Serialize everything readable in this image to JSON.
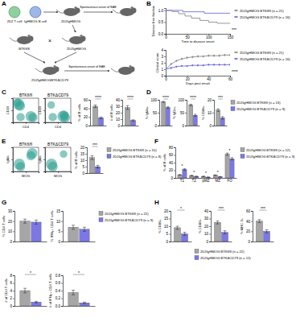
{
  "panel_labels": [
    "A",
    "B",
    "C",
    "D",
    "E",
    "F",
    "G",
    "H"
  ],
  "diagram": {
    "labels": [
      "2D2 T cell",
      "IgHMOG B cell",
      "2D2IgHMOG",
      "Spontaneous onset of EAE",
      "BTKfl/fl",
      "2D2IgHMOG",
      "2D2IgHMOGBTKΔCD79",
      "Spontaneous onset of EAE",
      "×"
    ]
  },
  "chart_data": [
    {
      "type": "line",
      "line_style": "step",
      "y_label": "Disease free fraction",
      "x_label": "Time to disease onset",
      "xlim": [
        0,
        150
      ],
      "xticks": [
        0,
        50,
        100,
        150
      ],
      "ylim": [
        0,
        1.1
      ],
      "yticks": [
        {
          "value": 0,
          "label": "0.0"
        },
        {
          "value": 0.5,
          "label": "0.5"
        },
        {
          "value": 1,
          "label": "1.0"
        }
      ],
      "legend": "right",
      "annotations": [
        "***"
      ],
      "series": [
        {
          "name": "2D2IgHMOG BTKfl/fl (n = 21)",
          "color": "#8c8c8c",
          "x": [
            0,
            15,
            30,
            45,
            60,
            80,
            100,
            120,
            150
          ],
          "values": [
            1,
            0.95,
            0.86,
            0.76,
            0.67,
            0.57,
            0.5,
            0.45,
            0.45
          ]
        },
        {
          "name": "2D2IgHMOG BTKΔCD79 (n = 16)",
          "color": "#6f6de0",
          "x": [
            0,
            40,
            90,
            150
          ],
          "values": [
            1,
            0.94,
            0.88,
            0.88
          ]
        }
      ]
    },
    {
      "type": "line",
      "marker": "circle",
      "y_label": "Clinical score",
      "x_label": "Days post onset",
      "xlim": [
        0,
        60
      ],
      "xticks": [
        0,
        20,
        40,
        60
      ],
      "ylim": [
        0,
        4
      ],
      "yticks": [
        0,
        1,
        2,
        3,
        4
      ],
      "legend": "right",
      "annotations": [
        "****"
      ],
      "series": [
        {
          "name": "2D2IgHMOG BTKfl/fl (n = 21)",
          "color": "#8c8c8c",
          "x": [
            0,
            5,
            10,
            15,
            20,
            25,
            30,
            35,
            40,
            45,
            50,
            55,
            60
          ],
          "values": [
            1,
            1.8,
            2.3,
            2.6,
            2.8,
            2.9,
            3,
            3,
            3.1,
            3.1,
            3.1,
            3.2,
            3.2
          ],
          "error": [
            0.1,
            0.2,
            0.2,
            0.2,
            0.2,
            0.2,
            0.2,
            0.2,
            0.2,
            0.2,
            0.2,
            0.2,
            0.2
          ]
        },
        {
          "name": "2D2IgHMOG BTKΔCD79 (n = 16)",
          "color": "#6f6de0",
          "x": [
            0,
            5,
            10,
            15,
            20,
            25,
            30,
            35,
            40,
            45,
            50,
            55,
            60
          ],
          "values": [
            1,
            1.2,
            1.4,
            1.5,
            1.5,
            1.6,
            1.6,
            1.6,
            1.7,
            1.7,
            1.7,
            1.7,
            1.7
          ],
          "error": [
            0.1,
            0.15,
            0.15,
            0.15,
            0.15,
            0.15,
            0.15,
            0.15,
            0.15,
            0.15,
            0.15,
            0.15,
            0.15
          ]
        }
      ]
    },
    {
      "type": "scatter",
      "title": "BTKfl/fl",
      "x_label": "CD4",
      "y_label": "CD19",
      "xlim": [
        0,
        100
      ],
      "xticks": [
        0,
        50,
        100
      ],
      "ylim": [
        0,
        100
      ],
      "yticks": [
        0,
        50,
        100
      ],
      "tick_labels": false,
      "color": "#2a9d8f",
      "x": [
        22,
        28,
        18,
        70,
        78,
        30
      ],
      "values": [
        75,
        68,
        82,
        25,
        20,
        22
      ],
      "size": [
        9,
        7,
        5,
        8,
        6,
        5
      ]
    },
    {
      "type": "scatter",
      "title": "BTKΔCD79",
      "x_label": "CD4",
      "y_label": "CD19",
      "xlim": [
        0,
        100
      ],
      "xticks": [
        0,
        50,
        100
      ],
      "ylim": [
        0,
        100
      ],
      "yticks": [
        0,
        50,
        100
      ],
      "tick_labels": false,
      "color": "#2a9d8f",
      "x": [
        24,
        70,
        78,
        74,
        30
      ],
      "values": [
        72,
        25,
        20,
        30,
        22
      ],
      "size": [
        4,
        9,
        7,
        6,
        5
      ]
    },
    {
      "type": "bar",
      "y_label": "% of B cells",
      "categories": [
        null
      ],
      "ylim": [
        0,
        60
      ],
      "yticks": [
        0,
        20,
        40,
        60
      ],
      "annotations": [
        "****"
      ],
      "series": [
        {
          "color": "#a6a6a6",
          "values": [
            45
          ],
          "error": [
            3
          ]
        },
        {
          "color": "#7b78e6",
          "values": [
            18
          ],
          "error": [
            2
          ]
        }
      ]
    },
    {
      "type": "bar",
      "y_label": "# of B cells",
      "categories": [
        null
      ],
      "ylim": [
        0,
        40
      ],
      "yticks": [
        0,
        10,
        20,
        30,
        40
      ],
      "annotations": [
        "****"
      ],
      "series": [
        {
          "color": "#a6a6a6",
          "values": [
            28
          ],
          "error": [
            3
          ]
        },
        {
          "color": "#7b78e6",
          "values": [
            8
          ],
          "error": [
            1
          ]
        }
      ]
    },
    {
      "type": "bar",
      "y_label": "% IgMa+",
      "categories": [
        null
      ],
      "ylim": [
        0,
        100
      ],
      "yticks": [
        0,
        50,
        100
      ],
      "annotations": [
        "****"
      ],
      "series": [
        {
          "color": "#a6a6a6",
          "values": [
            92
          ],
          "error": [
            2
          ]
        },
        {
          "color": "#7b78e6",
          "values": [
            70
          ],
          "error": [
            3
          ]
        }
      ]
    },
    {
      "type": "bar",
      "y_label": "% IgDa+",
      "categories": [
        null
      ],
      "ylim": [
        0,
        100
      ],
      "yticks": [
        0,
        50,
        100
      ],
      "annotations": [
        "****"
      ],
      "series": [
        {
          "color": "#a6a6a6",
          "values": [
            80
          ],
          "error": [
            3
          ]
        },
        {
          "color": "#7b78e6",
          "values": [
            40
          ],
          "error": [
            4
          ]
        }
      ]
    },
    {
      "type": "bar",
      "y_label": "% CD86+",
      "categories": [
        null
      ],
      "ylim": [
        0,
        20
      ],
      "yticks": [
        0,
        10,
        20
      ],
      "legend": "right",
      "annotations": [
        "***"
      ],
      "series": [
        {
          "name": "2D2IgHMOG BTKfl/fl (n = 13)",
          "color": "#a6a6a6",
          "values": [
            12
          ],
          "error": [
            1
          ]
        },
        {
          "name": "2D2IgHMOG BTKΔCD79 (n = 9)",
          "color": "#7b78e6",
          "values": [
            6
          ],
          "error": [
            1
          ]
        }
      ]
    },
    {
      "type": "scatter",
      "title": "BTKfl/fl",
      "x_label": "MOG",
      "y_label": "IgMa",
      "xlim": [
        0,
        100
      ],
      "xticks": [
        0,
        50,
        100
      ],
      "ylim": [
        0,
        100
      ],
      "yticks": [
        0,
        50,
        100
      ],
      "tick_labels": false,
      "color": "#2a9d8f",
      "x": [
        75,
        25,
        70,
        30
      ],
      "values": [
        75,
        30,
        65,
        20
      ],
      "size": [
        8,
        9,
        6,
        6
      ]
    },
    {
      "type": "scatter",
      "title": "BTKΔCD79",
      "x_label": "MOG",
      "y_label": "IgMa",
      "xlim": [
        0,
        100
      ],
      "xticks": [
        0,
        50,
        100
      ],
      "ylim": [
        0,
        100
      ],
      "yticks": [
        0,
        50,
        100
      ],
      "tick_labels": false,
      "color": "#2a9d8f",
      "x": [
        72,
        25,
        30
      ],
      "values": [
        72,
        30,
        20
      ],
      "size": [
        4,
        9,
        7
      ]
    },
    {
      "type": "bar",
      "y_label": "% of B cells",
      "categories": [
        null
      ],
      "ylim": [
        0,
        20
      ],
      "yticks": [
        0,
        5,
        10,
        15,
        20
      ],
      "legend": "right",
      "annotations": [
        "***"
      ],
      "series": [
        {
          "name": "2D2IgHMOG BTKfl/fl (n = 10)",
          "color": "#a6a6a6",
          "values": [
            12
          ],
          "error": [
            1.5
          ]
        },
        {
          "name": "2D2IgHMOG BTKΔCD79 (n = 8)",
          "color": "#7b78e6",
          "values": [
            5
          ],
          "error": [
            1
          ]
        }
      ]
    },
    {
      "type": "bar",
      "y_label": "% of B cells",
      "categories": [
        "T1",
        "T2",
        "pMZ",
        "MZ",
        "FO"
      ],
      "ylim": [
        0,
        80
      ],
      "yticks": [
        0,
        20,
        40,
        60,
        80
      ],
      "legend": "right",
      "annotations": [
        "*",
        "*",
        "*",
        "*",
        "*"
      ],
      "series": [
        {
          "name": "2D2IgHMOG BTKfl/fl (n = 12)",
          "color": "#a6a6a6",
          "values": [
            8,
            6,
            4,
            7,
            62
          ],
          "error": [
            1,
            1,
            0.5,
            1,
            3
          ]
        },
        {
          "name": "2D2IgHMOG BTKΔCD79 (n = 9)",
          "color": "#7b78e6",
          "values": [
            22,
            4,
            2,
            3,
            50
          ],
          "error": [
            2,
            0.5,
            0.3,
            0.5,
            3
          ]
        }
      ]
    },
    {
      "type": "bar",
      "y_label": "% CD4 T cells",
      "categories": [
        null
      ],
      "ylim": [
        0,
        30
      ],
      "yticks": [
        0,
        10,
        20,
        30
      ],
      "series": [
        {
          "color": "#a6a6a6",
          "values": [
            20
          ],
          "error": [
            2
          ]
        },
        {
          "color": "#7b78e6",
          "values": [
            19
          ],
          "error": [
            2
          ]
        }
      ]
    },
    {
      "type": "bar",
      "y_label": "% IFNγ+ CD4 T cells",
      "categories": [
        null
      ],
      "ylim": [
        0,
        15
      ],
      "yticks": [
        0,
        5,
        10,
        15
      ],
      "legend": "right",
      "series": [
        {
          "name": "2D2IgHMOG BTKfl/fl (n = 22)",
          "color": "#a6a6a6",
          "values": [
            7
          ],
          "error": [
            1
          ]
        },
        {
          "name": "2D2IgHMOG BTKΔCD79 (n = 9)",
          "color": "#7b78e6",
          "values": [
            6
          ],
          "error": [
            1
          ]
        }
      ]
    },
    {
      "type": "bar",
      "y_label": "# of CD4 T cells",
      "categories": [
        null
      ],
      "ylim": [
        0,
        8
      ],
      "yticks": [
        0,
        2,
        4,
        6,
        8
      ],
      "annotations": [
        "*"
      ],
      "series": [
        {
          "color": "#a6a6a6",
          "values": [
            4
          ],
          "error": [
            0.6
          ]
        },
        {
          "color": "#7b78e6",
          "values": [
            1
          ],
          "error": [
            0.2
          ]
        }
      ]
    },
    {
      "type": "bar",
      "y_label": "# of IFNγ+ CD4 T cells",
      "categories": [
        null
      ],
      "ylim": [
        0,
        0.8
      ],
      "yticks": [
        {
          "value": 0,
          "label": "0.0"
        },
        {
          "value": 0.2,
          "label": "0.2"
        },
        {
          "value": 0.4,
          "label": "0.4"
        },
        {
          "value": 0.6,
          "label": "0.6"
        },
        {
          "value": 0.8,
          "label": "0.8"
        }
      ],
      "annotations": [
        "*"
      ],
      "series": [
        {
          "color": "#a6a6a6",
          "values": [
            0.35
          ],
          "error": [
            0.06
          ]
        },
        {
          "color": "#7b78e6",
          "values": [
            0.08
          ],
          "error": [
            0.02
          ]
        }
      ]
    },
    {
      "type": "bar",
      "y_label": "% CD86+",
      "categories": [
        null
      ],
      "ylim": [
        0,
        20
      ],
      "yticks": [
        0,
        5,
        10,
        15,
        20
      ],
      "annotations": [
        "*"
      ],
      "series": [
        {
          "color": "#a6a6a6",
          "values": [
            9
          ],
          "error": [
            1
          ]
        },
        {
          "color": "#7b78e6",
          "values": [
            5
          ],
          "error": [
            1
          ]
        }
      ]
    },
    {
      "type": "bar",
      "y_label": "% CD80+",
      "categories": [
        null
      ],
      "ylim": [
        0,
        40
      ],
      "yticks": [
        0,
        10,
        20,
        30,
        40
      ],
      "legend": "bottom",
      "annotations": [
        "***"
      ],
      "series": [
        {
          "name": "2D2IgHMOG BTKfl/fl (n = 22)",
          "color": "#a6a6a6",
          "values": [
            25
          ],
          "error": [
            2
          ]
        },
        {
          "name": "2D2IgHMOG BTKΔCD79 (n = 12)",
          "color": "#7b78e6",
          "values": [
            12
          ],
          "error": [
            2
          ]
        }
      ]
    },
    {
      "type": "bar",
      "y_label": "% MHC II+",
      "categories": [
        null
      ],
      "ylim": [
        0,
        60
      ],
      "yticks": [
        0,
        20,
        40,
        60
      ],
      "annotations": [
        "***"
      ],
      "series": [
        {
          "color": "#a6a6a6",
          "values": [
            40
          ],
          "error": [
            3
          ]
        },
        {
          "color": "#7b78e6",
          "values": [
            20
          ],
          "error": [
            3
          ]
        }
      ]
    }
  ]
}
